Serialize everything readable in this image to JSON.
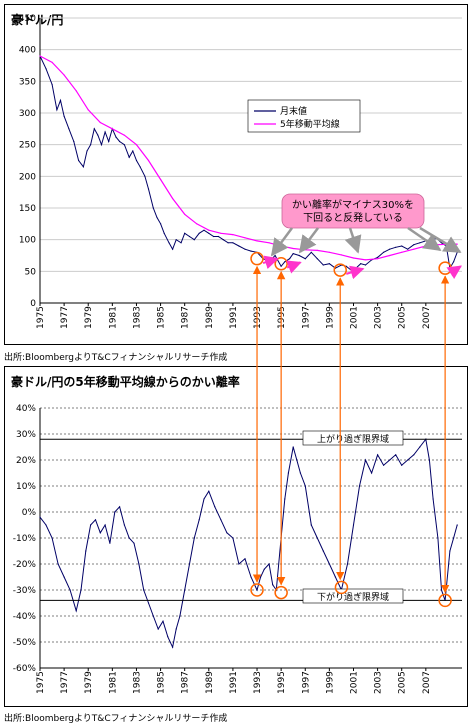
{
  "chart_data": [
    {
      "type": "line",
      "title": "豪ドル/円",
      "xlim": [
        1975,
        2010
      ],
      "ylim": [
        0,
        450
      ],
      "ytick_step": 50,
      "x_tick_labels": [
        "1975",
        "1977",
        "1979",
        "1981",
        "1983",
        "1985",
        "1987",
        "1989",
        "1991",
        "1993",
        "1995",
        "1997",
        "1999",
        "2001",
        "2003",
        "2005",
        "2007"
      ],
      "legend": {
        "position": "center-right",
        "entries": [
          "月末値",
          "5年移動平均線"
        ]
      },
      "series": [
        {
          "name": "月末値",
          "color": "#000066",
          "x": [
            1975.0,
            1975.5,
            1976.0,
            1976.4,
            1976.7,
            1977.0,
            1977.4,
            1977.8,
            1978.2,
            1978.6,
            1978.9,
            1979.2,
            1979.5,
            1979.8,
            1980.1,
            1980.4,
            1980.7,
            1981.0,
            1981.3,
            1981.6,
            1982.0,
            1982.4,
            1982.7,
            1983.0,
            1983.3,
            1983.7,
            1984.0,
            1984.4,
            1984.7,
            1985.0,
            1985.3,
            1985.7,
            1986.0,
            1986.3,
            1986.7,
            1987.0,
            1987.4,
            1987.8,
            1988.2,
            1988.6,
            1989.0,
            1989.4,
            1989.8,
            1990.2,
            1990.6,
            1991.0,
            1991.5,
            1992.0,
            1992.5,
            1993.0,
            1993.5,
            1994.0,
            1994.5,
            1995.0,
            1995.3,
            1995.7,
            1996.0,
            1996.5,
            1997.0,
            1997.5,
            1998.0,
            1998.5,
            1999.0,
            1999.5,
            2000.0,
            2000.4,
            2000.8,
            2001.2,
            2001.6,
            2002.0,
            2002.5,
            2003.0,
            2003.5,
            2004.0,
            2004.5,
            2005.0,
            2005.5,
            2006.0,
            2006.5,
            2007.0,
            2007.5,
            2007.9,
            2008.3,
            2008.7,
            2009.0,
            2009.3,
            2009.6
          ],
          "values": [
            390,
            370,
            345,
            305,
            320,
            295,
            275,
            255,
            225,
            215,
            240,
            250,
            275,
            265,
            250,
            270,
            255,
            275,
            262,
            255,
            250,
            230,
            240,
            225,
            215,
            200,
            180,
            150,
            135,
            125,
            110,
            95,
            85,
            100,
            95,
            110,
            105,
            100,
            110,
            115,
            110,
            105,
            105,
            100,
            95,
            95,
            90,
            85,
            82,
            80,
            70,
            65,
            75,
            58,
            65,
            70,
            78,
            75,
            70,
            80,
            70,
            60,
            62,
            55,
            60,
            58,
            52,
            55,
            62,
            60,
            68,
            72,
            80,
            85,
            88,
            90,
            85,
            92,
            95,
            98,
            100,
            102,
            95,
            90,
            55,
            65,
            80
          ]
        },
        {
          "name": "5年移動平均線",
          "color": "#ff00ff",
          "x": [
            1975.0,
            1976.0,
            1977.0,
            1978.0,
            1979.0,
            1980.0,
            1981.0,
            1982.0,
            1983.0,
            1984.0,
            1985.0,
            1986.0,
            1987.0,
            1988.0,
            1989.0,
            1990.0,
            1991.0,
            1992.0,
            1993.0,
            1994.0,
            1995.0,
            1996.0,
            1997.0,
            1998.0,
            1999.0,
            2000.0,
            2001.0,
            2002.0,
            2003.0,
            2004.0,
            2005.0,
            2006.0,
            2007.0,
            2008.0,
            2009.0,
            2009.6
          ],
          "values": [
            390,
            380,
            360,
            335,
            305,
            285,
            275,
            265,
            250,
            225,
            195,
            165,
            140,
            125,
            115,
            110,
            108,
            103,
            98,
            95,
            90,
            86,
            84,
            83,
            80,
            76,
            71,
            68,
            70,
            75,
            80,
            85,
            90,
            92,
            93,
            93
          ]
        }
      ],
      "annotations": [
        "かい離率がマイナス30%を",
        "下回ると反発している"
      ]
    },
    {
      "type": "line",
      "title": "豪ドル/円の5年移動平均線からのかい離率",
      "xlim": [
        1975,
        2010
      ],
      "ylim": [
        -60,
        40
      ],
      "y_ticks": [
        "40%",
        "30%",
        "20%",
        "10%",
        "0%",
        "-10%",
        "-20%",
        "-30%",
        "-40%",
        "-50%",
        "-60%"
      ],
      "x_tick_labels": [
        "1975",
        "1977",
        "1979",
        "1981",
        "1983",
        "1985",
        "1987",
        "1989",
        "1991",
        "1993",
        "1995",
        "1997",
        "1999",
        "2001",
        "2003",
        "2005",
        "2007"
      ],
      "reference_lines": [
        {
          "label": "上がり過ぎ限界域",
          "value": 28
        },
        {
          "label": "下がり過ぎ限界域",
          "value": -34
        }
      ],
      "series": [
        {
          "name": "",
          "color": "#000066",
          "x": [
            1975.0,
            1975.5,
            1976.0,
            1976.5,
            1977.0,
            1977.5,
            1978.0,
            1978.4,
            1978.8,
            1979.2,
            1979.6,
            1980.0,
            1980.4,
            1980.8,
            1981.2,
            1981.6,
            1982.0,
            1982.4,
            1982.8,
            1983.2,
            1983.6,
            1984.0,
            1984.4,
            1984.8,
            1985.2,
            1985.6,
            1986.0,
            1986.3,
            1986.6,
            1987.0,
            1987.4,
            1987.8,
            1988.2,
            1988.6,
            1989.0,
            1989.5,
            1990.0,
            1990.5,
            1991.0,
            1991.5,
            1992.0,
            1992.5,
            1993.0,
            1993.3,
            1993.6,
            1994.0,
            1994.3,
            1994.6,
            1995.0,
            1995.3,
            1995.6,
            1996.0,
            1996.3,
            1996.6,
            1997.0,
            1997.5,
            1998.0,
            1998.5,
            1999.0,
            1999.5,
            2000.0,
            2000.5,
            2001.0,
            2001.5,
            2002.0,
            2002.5,
            2003.0,
            2003.5,
            2004.0,
            2004.5,
            2005.0,
            2005.5,
            2006.0,
            2006.5,
            2007.0,
            2007.3,
            2007.6,
            2008.0,
            2008.3,
            2008.6,
            2009.0,
            2009.3,
            2009.6
          ],
          "values": [
            -2,
            -5,
            -10,
            -20,
            -25,
            -30,
            -38,
            -30,
            -15,
            -5,
            -3,
            -8,
            -5,
            -12,
            0,
            2,
            -5,
            -10,
            -12,
            -20,
            -30,
            -35,
            -40,
            -45,
            -42,
            -48,
            -52,
            -45,
            -40,
            -30,
            -20,
            -10,
            -3,
            5,
            8,
            2,
            -3,
            -8,
            -10,
            -20,
            -18,
            -25,
            -30,
            -25,
            -22,
            -20,
            -28,
            -30,
            -10,
            5,
            15,
            25,
            20,
            15,
            10,
            -5,
            -10,
            -15,
            -20,
            -25,
            -30,
            -20,
            -5,
            10,
            20,
            15,
            22,
            18,
            20,
            22,
            18,
            20,
            22,
            25,
            28,
            20,
            5,
            -10,
            -30,
            -34,
            -15,
            -10,
            -5
          ]
        }
      ],
      "annotations": []
    }
  ],
  "titles": {
    "chart1": "豪ドル/円",
    "chart2": "豪ドル/円の5年移動平均線からのかい離率"
  },
  "legend": {
    "monthly": "月末値",
    "ma5": "5年移動平均線"
  },
  "callout": {
    "line1": "かい離率がマイナス30%を",
    "line2": "下回ると反発している"
  },
  "labels": {
    "over": "上がり過ぎ限界域",
    "under": "下がり過ぎ限界域"
  },
  "sources": {
    "s1": "出所:BloombergよりT&Cフィナンシャルリサーチ作成",
    "s2": "出所:BloombergよりT&Cフィナンシャルリサーチ作成"
  },
  "colors": {
    "price": "#000066",
    "ma": "#ff00ff",
    "callout_fill": "#ff99cc",
    "arrow_orange": "#ff6600",
    "arrow_gray": "#999999",
    "arrow_pink": "#ff33cc"
  }
}
